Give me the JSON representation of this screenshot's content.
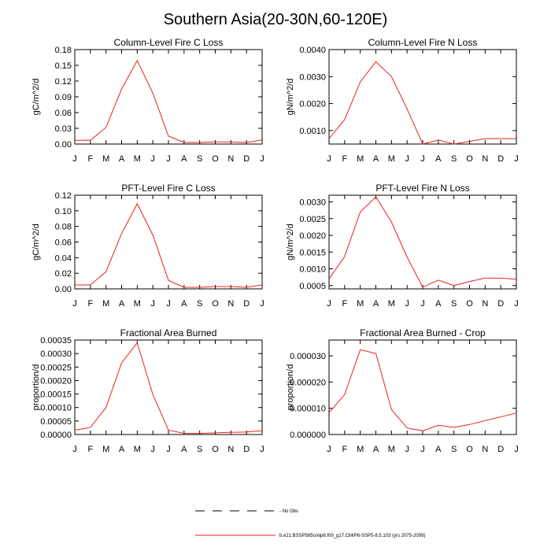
{
  "figure": {
    "title": "Southern Asia(20-30N,60-120E)",
    "month_labels": [
      "J",
      "F",
      "M",
      "A",
      "M",
      "J",
      "J",
      "A",
      "S",
      "O",
      "N",
      "D",
      "J"
    ]
  },
  "legend": {
    "obs_label": "- No Obs",
    "model_label": "b.e21.BSSP585cmip6.f09_g17.CMIP6-SSP5-8.5.103 (yrs 2075-2099)",
    "model_color": "#e8221f",
    "obs_color": "#000000"
  },
  "chart_data": [
    {
      "type": "line",
      "title": "Column-Level Fire C Loss",
      "ylabel": "gC/m^2/d",
      "ylim": [
        0,
        0.18
      ],
      "yticks": [
        "0.00",
        "0.03",
        "0.06",
        "0.09",
        "0.12",
        "0.15",
        "0.18"
      ],
      "x": [
        "J",
        "F",
        "M",
        "A",
        "M",
        "J",
        "J",
        "A",
        "S",
        "O",
        "N",
        "D",
        "J"
      ],
      "series": [
        {
          "values": [
            0.007,
            0.007,
            0.032,
            0.105,
            0.159,
            0.097,
            0.015,
            0.003,
            0.003,
            0.004,
            0.004,
            0.003,
            0.008
          ]
        }
      ]
    },
    {
      "type": "line",
      "title": "Column-Level Fire N Loss",
      "ylabel": "gN/m^2/d",
      "ylim": [
        0.0005,
        0.004
      ],
      "yticks": [
        "0.0010",
        "0.0020",
        "0.0030",
        "0.0040"
      ],
      "x": [
        "J",
        "F",
        "M",
        "A",
        "M",
        "J",
        "J",
        "A",
        "S",
        "O",
        "N",
        "D",
        "J"
      ],
      "series": [
        {
          "values": [
            0.0007,
            0.0014,
            0.0028,
            0.00355,
            0.003,
            0.0018,
            0.0005,
            0.00065,
            0.0005,
            0.0006,
            0.0007,
            0.0007,
            0.0007
          ]
        }
      ]
    },
    {
      "type": "line",
      "title": "PFT-Level Fire C Loss",
      "ylabel": "gC/m^2/d",
      "ylim": [
        0,
        0.12
      ],
      "yticks": [
        "0.00",
        "0.02",
        "0.04",
        "0.06",
        "0.08",
        "0.10",
        "0.12"
      ],
      "x": [
        "J",
        "F",
        "M",
        "A",
        "M",
        "J",
        "J",
        "A",
        "S",
        "O",
        "N",
        "D",
        "J"
      ],
      "series": [
        {
          "values": [
            0.005,
            0.005,
            0.022,
            0.071,
            0.109,
            0.069,
            0.011,
            0.002,
            0.002,
            0.003,
            0.003,
            0.002,
            0.005
          ]
        }
      ]
    },
    {
      "type": "line",
      "title": "PFT-Level Fire N Loss",
      "ylabel": "gN/m^2/d",
      "ylim": [
        0.0004,
        0.0032
      ],
      "yticks": [
        "0.0005",
        "0.0010",
        "0.0015",
        "0.0020",
        "0.0025",
        "0.0030"
      ],
      "x": [
        "J",
        "F",
        "M",
        "A",
        "M",
        "J",
        "J",
        "A",
        "S",
        "O",
        "N",
        "D",
        "J"
      ],
      "series": [
        {
          "values": [
            0.0007,
            0.00137,
            0.0027,
            0.00315,
            0.0024,
            0.00135,
            0.00045,
            0.00066,
            0.0005,
            0.00062,
            0.00072,
            0.00072,
            0.00069
          ]
        }
      ]
    },
    {
      "type": "line",
      "title": "Fractional Area Burned",
      "ylabel": "proportion/d",
      "ylim": [
        0,
        0.00035
      ],
      "yticks": [
        "0.00000",
        "0.00005",
        "0.00010",
        "0.00015",
        "0.00020",
        "0.00025",
        "0.00030",
        "0.00035"
      ],
      "x": [
        "J",
        "F",
        "M",
        "A",
        "M",
        "J",
        "J",
        "A",
        "S",
        "O",
        "N",
        "D",
        "J"
      ],
      "series": [
        {
          "values": [
            1.6e-05,
            2.6e-05,
            0.0001,
            0.000265,
            0.00034,
            0.000148,
            1.6e-05,
            4e-06,
            4e-06,
            6e-06,
            8e-06,
            9e-06,
            1.4e-05
          ]
        }
      ]
    },
    {
      "type": "line",
      "title": "Fractional Area Burned - Crop",
      "ylabel": "proportion/d",
      "ylim": [
        0,
        3.6e-05
      ],
      "yticks": [
        "0.000000",
        "0.000010",
        "0.000020",
        "0.000030"
      ],
      "x": [
        "J",
        "F",
        "M",
        "A",
        "M",
        "J",
        "J",
        "A",
        "S",
        "O",
        "N",
        "D",
        "J"
      ],
      "series": [
        {
          "values": [
            8.3e-06,
            1.52e-05,
            3.23e-05,
            3.09e-05,
            9.5e-06,
            2.5e-06,
            1.4e-06,
            3.5e-06,
            2.7e-06,
            3.8e-06,
            5.3e-06,
            6.7e-06,
            8.2e-06
          ]
        }
      ]
    }
  ]
}
